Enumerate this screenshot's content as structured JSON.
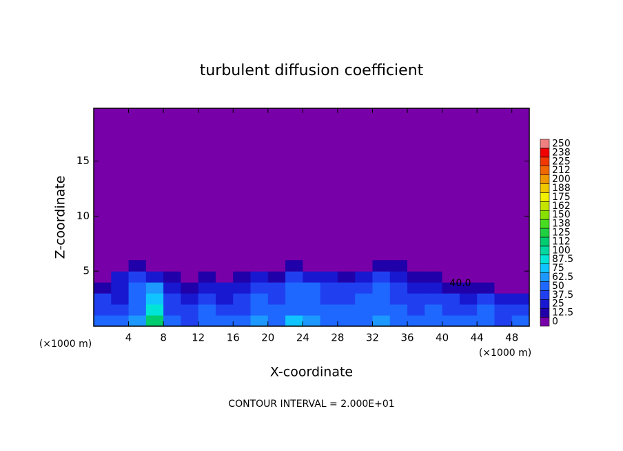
{
  "chart_data": {
    "type": "heatmap",
    "title": "turbulent diffusion coefficient",
    "x_label": "X-coordinate",
    "y_label": "Z-coordinate",
    "x_unit": "(×1000 m)",
    "y_unit": "(×1000 m)",
    "footer": "CONTOUR INTERVAL = 2.000E+01",
    "annotation": "40.0",
    "xlim": [
      0,
      50
    ],
    "ylim": [
      0,
      19.8
    ],
    "xticks": [
      4,
      8,
      12,
      16,
      20,
      24,
      28,
      32,
      36,
      40,
      44,
      48
    ],
    "yticks": [
      5,
      10,
      15
    ],
    "x": [
      1,
      3,
      5,
      7,
      9,
      11,
      13,
      15,
      17,
      19,
      21,
      23,
      25,
      27,
      29,
      31,
      33,
      35,
      37,
      39,
      41,
      43,
      45,
      47,
      49
    ],
    "y": [
      0.5,
      1.5,
      2.5,
      3.5,
      4.5,
      5.5
    ],
    "values": [
      [
        50,
        45,
        60,
        110,
        45,
        40,
        55,
        50,
        45,
        60,
        55,
        70,
        60,
        55,
        50,
        55,
        60,
        50,
        45,
        55,
        50,
        45,
        50,
        40,
        45
      ],
      [
        40,
        40,
        55,
        90,
        40,
        35,
        45,
        40,
        40,
        50,
        45,
        55,
        55,
        45,
        45,
        50,
        55,
        45,
        40,
        45,
        40,
        40,
        45,
        35,
        40
      ],
      [
        35,
        30,
        50,
        80,
        35,
        25,
        40,
        30,
        35,
        45,
        40,
        50,
        50,
        40,
        40,
        45,
        50,
        40,
        35,
        40,
        35,
        30,
        35,
        20,
        20
      ],
      [
        15,
        25,
        50,
        60,
        30,
        15,
        25,
        20,
        30,
        40,
        35,
        45,
        45,
        35,
        35,
        40,
        45,
        35,
        20,
        25,
        15,
        10,
        10,
        5,
        5
      ],
      [
        5,
        20,
        40,
        30,
        10,
        0,
        10,
        5,
        15,
        20,
        15,
        35,
        30,
        20,
        15,
        25,
        40,
        25,
        10,
        10,
        5,
        0,
        0,
        0,
        0
      ],
      [
        0,
        0,
        10,
        5,
        0,
        0,
        0,
        0,
        0,
        0,
        0,
        10,
        5,
        0,
        0,
        0,
        10,
        15,
        0,
        0,
        0,
        0,
        0,
        0,
        0
      ]
    ],
    "colorbar": {
      "ticks": [
        0,
        12.5,
        25,
        37.5,
        50,
        62.5,
        75,
        87.5,
        100,
        {
          "value": 112.5,
          "label": "112"
        },
        125,
        {
          "value": 137.5,
          "label": "138"
        },
        150,
        {
          "value": 162.5,
          "label": "162"
        },
        175,
        {
          "value": 187.5,
          "label": "188"
        },
        200,
        {
          "value": 212.5,
          "label": "212"
        },
        225,
        {
          "value": 237.5,
          "label": "238"
        },
        250
      ],
      "colors": [
        "#7800a8",
        "#2000a8",
        "#1818d0",
        "#2040f0",
        "#1e68ff",
        "#1c98ff",
        "#10c4ff",
        "#00e4d8",
        "#00d8a0",
        "#00cc70",
        "#20d040",
        "#48dc20",
        "#88e000",
        "#c4e400",
        "#f0f000",
        "#f0c800",
        "#f09800",
        "#f06800",
        "#f03800",
        "#f00000",
        "#f08080"
      ]
    }
  }
}
